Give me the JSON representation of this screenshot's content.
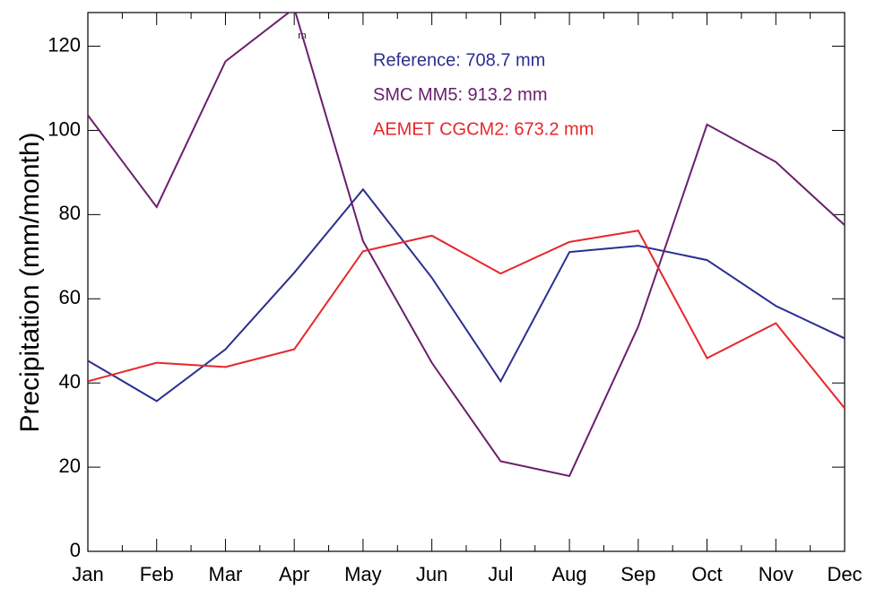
{
  "chart_data": {
    "type": "line",
    "y_label": "Precipitation (mm/month)",
    "annotation": "m",
    "categories": [
      "Jan",
      "Feb",
      "Mar",
      "Apr",
      "May",
      "Jun",
      "Jul",
      "Aug",
      "Sep",
      "Oct",
      "Nov",
      "Dec"
    ],
    "series": [
      {
        "name": "Reference: 708.7 mm",
        "color": "#2b2f8f",
        "values": [
          45.3,
          35.7,
          48,
          66.2,
          86,
          65,
          40.4,
          71.1,
          72.6,
          69.2,
          58.3,
          50.6
        ]
      },
      {
        "name": "SMC MM5: 913.2 mm",
        "color": "#6b1e6e",
        "values": [
          103.6,
          81.8,
          116.4,
          129,
          73.7,
          44.8,
          21.4,
          17.9,
          53.4,
          101.4,
          92.5,
          77.5
        ]
      },
      {
        "name": "AEMET CGCM2: 673.2 mm",
        "color": "#e8262a",
        "values": [
          40.4,
          44.8,
          43.8,
          48,
          71.3,
          75,
          66,
          73.5,
          76.2,
          45.9,
          54.2,
          34
        ]
      }
    ],
    "ylim": [
      0,
      128
    ],
    "yticks": [
      0,
      20,
      40,
      60,
      80,
      100,
      120
    ],
    "grid": false
  }
}
